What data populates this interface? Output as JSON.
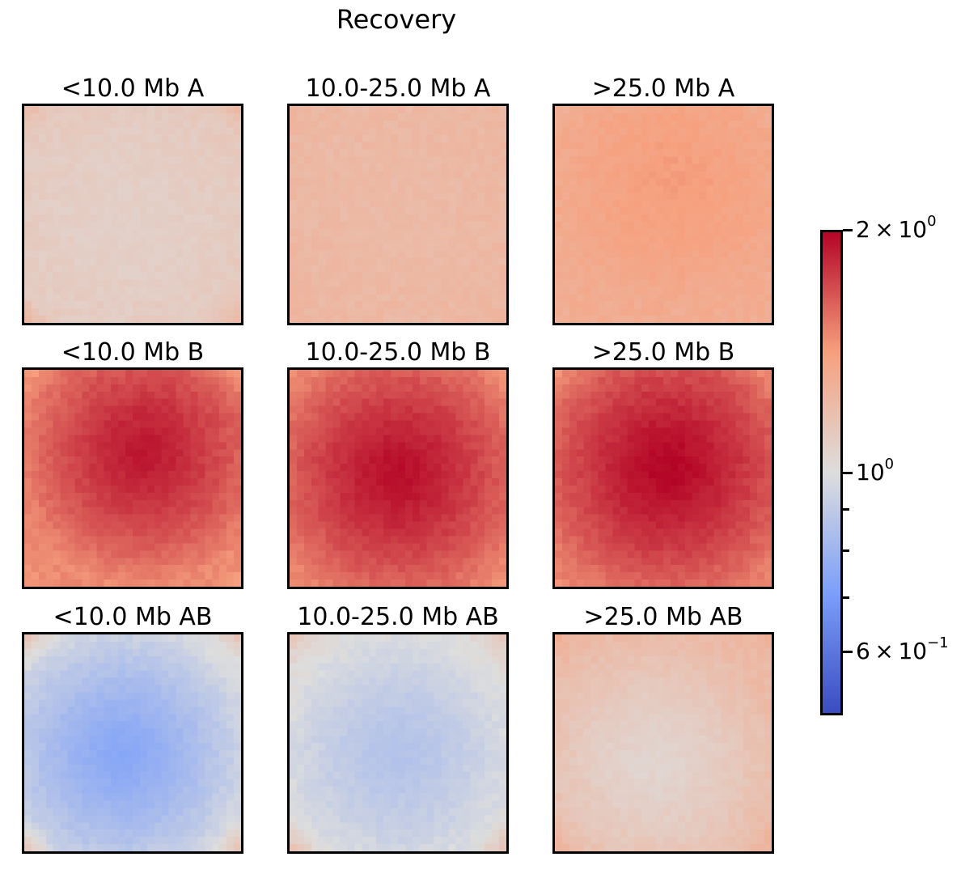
{
  "title": "Recovery",
  "chart_data": {
    "type": "heatmap",
    "title": "Recovery",
    "grid": "3x3",
    "colormap": "coolwarm",
    "scale": "log",
    "vmin": 0.5,
    "vmax": 2,
    "panels": [
      {
        "title": "<10.0 Mb A",
        "center": 1.08,
        "edge": 1.12,
        "corner": 1.25,
        "peak": [
          0.45,
          0.55
        ]
      },
      {
        "title": "10.0-25.0 Mb A",
        "center": 1.22,
        "edge": 1.24,
        "corner": 1.25,
        "peak": [
          0.5,
          0.5
        ]
      },
      {
        "title": ">25.0 Mb A",
        "center": 1.42,
        "edge": 1.32,
        "corner": 1.3,
        "peak": [
          0.55,
          0.35
        ]
      },
      {
        "title": "<10.0 Mb B",
        "center": 1.92,
        "edge": 1.48,
        "corner": 1.42,
        "peak": [
          0.55,
          0.38
        ]
      },
      {
        "title": "10.0-25.0 Mb B",
        "center": 1.96,
        "edge": 1.52,
        "corner": 1.45,
        "peak": [
          0.5,
          0.48
        ]
      },
      {
        "title": ">25.0 Mb B",
        "center": 2.0,
        "edge": 1.55,
        "corner": 1.45,
        "peak": [
          0.52,
          0.45
        ]
      },
      {
        "title": "<10.0 Mb AB",
        "center": 0.74,
        "edge": 0.98,
        "corner": 1.22,
        "peak": [
          0.45,
          0.55
        ]
      },
      {
        "title": "10.0-25.0 Mb AB",
        "center": 0.86,
        "edge": 1.02,
        "corner": 1.2,
        "peak": [
          0.5,
          0.55
        ]
      },
      {
        "title": ">25.0 Mb AB",
        "center": 1.05,
        "edge": 1.22,
        "corner": 1.3,
        "peak": [
          0.45,
          0.6
        ]
      }
    ],
    "colorbar": {
      "ticks": [
        {
          "value": 2,
          "mantissa": "2",
          "exp": "0"
        },
        {
          "value": 1,
          "mantissa": "",
          "exp": "0"
        },
        {
          "value": 0.6,
          "mantissa": "6",
          "exp": "−1"
        }
      ],
      "minor_ticks": [
        0.9,
        0.8,
        0.7
      ],
      "base_label": "10"
    }
  }
}
